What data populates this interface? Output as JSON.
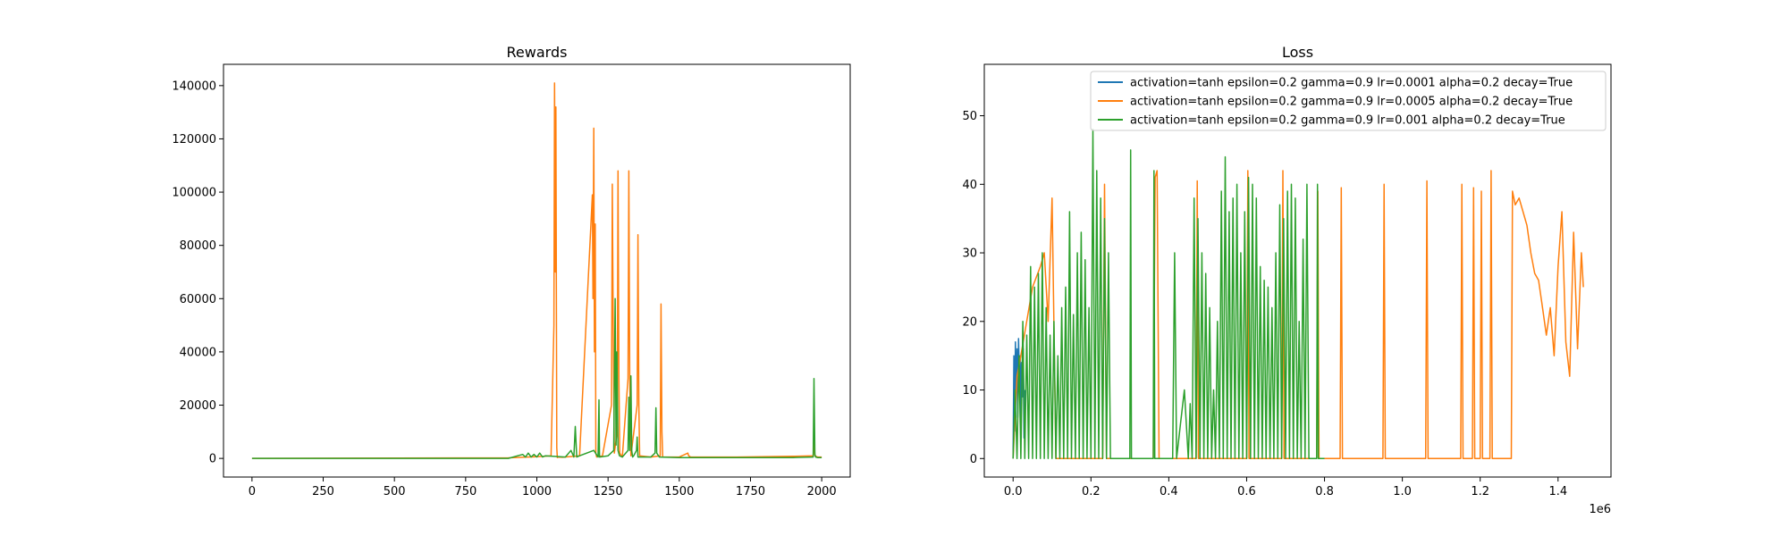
{
  "chart_data": [
    {
      "type": "line",
      "title": "Rewards",
      "xlabel": "",
      "ylabel": "",
      "xlim": [
        -100,
        2100
      ],
      "ylim": [
        -7000,
        148000
      ],
      "xticks": [
        "0",
        "250",
        "500",
        "750",
        "1000",
        "1250",
        "1500",
        "1750",
        "2000"
      ],
      "yticks": [
        "0",
        "20000",
        "40000",
        "60000",
        "80000",
        "100000",
        "120000",
        "140000"
      ],
      "grid": false,
      "series": [
        {
          "color": "#ff7f0e",
          "x": [
            0,
            900,
            1000,
            1050,
            1060,
            1062,
            1065,
            1067,
            1070,
            1072,
            1074,
            1090,
            1150,
            1195,
            1197,
            1200,
            1202,
            1205,
            1207,
            1210,
            1212,
            1230,
            1262,
            1265,
            1268,
            1272,
            1282,
            1285,
            1288,
            1291,
            1300,
            1320,
            1323,
            1326,
            1330,
            1352,
            1355,
            1358,
            1361,
            1400,
            1433,
            1436,
            1439,
            1442,
            1500,
            1530,
            1533,
            1540,
            1700,
            1900,
            1970,
            1973,
            1976,
            1985,
            2000
          ],
          "y": [
            0,
            200,
            600,
            1000,
            50000,
            141000,
            70000,
            132000,
            4000,
            300,
            500,
            400,
            1000,
            99000,
            60000,
            124000,
            40000,
            88000,
            2000,
            500,
            1000,
            800,
            20000,
            103000,
            50000,
            2000,
            10000,
            108000,
            30000,
            2000,
            500,
            30000,
            108000,
            30000,
            1000,
            20000,
            84000,
            20000,
            1000,
            500,
            1000,
            58000,
            10000,
            500,
            500,
            2000,
            1000,
            500,
            500,
            800,
            1000,
            7000,
            1000,
            500,
            500
          ]
        },
        {
          "color": "#2ca02c",
          "x": [
            0,
            900,
            950,
            960,
            970,
            980,
            990,
            1000,
            1010,
            1020,
            1030,
            1100,
            1120,
            1130,
            1135,
            1140,
            1150,
            1200,
            1215,
            1218,
            1220,
            1250,
            1270,
            1275,
            1278,
            1281,
            1285,
            1290,
            1300,
            1320,
            1323,
            1326,
            1330,
            1333,
            1336,
            1340,
            1350,
            1352,
            1355,
            1400,
            1415,
            1418,
            1421,
            1430,
            1500,
            1900,
            1970,
            1973,
            1976,
            1979,
            1985,
            2000
          ],
          "y": [
            0,
            0,
            1500,
            500,
            2000,
            500,
            1500,
            500,
            2000,
            500,
            1000,
            500,
            3000,
            500,
            12000,
            500,
            1000,
            3000,
            500,
            22000,
            500,
            1000,
            3000,
            60000,
            5000,
            40000,
            3000,
            1000,
            500,
            3000,
            23000,
            3000,
            31000,
            3000,
            500,
            1000,
            3000,
            8000,
            500,
            500,
            2000,
            19000,
            2000,
            500,
            300,
            300,
            500,
            30000,
            1500,
            500,
            300,
            300
          ]
        }
      ]
    },
    {
      "type": "line",
      "title": "Loss",
      "xlabel": "",
      "ylabel": "",
      "x_offset_label": "1e6",
      "xlim": [
        -0.074,
        1.536
      ],
      "ylim": [
        -2.7,
        57.5
      ],
      "xticks": [
        "0.0",
        "0.2",
        "0.4",
        "0.6",
        "0.8",
        "1.0",
        "1.2",
        "1.4"
      ],
      "yticks": [
        "0",
        "10",
        "20",
        "30",
        "40",
        "50"
      ],
      "grid": false,
      "legend_position": "top-right",
      "legend": [
        "activation=tanh epsilon=0.2 gamma=0.9 lr=0.0001 alpha=0.2 decay=True",
        "activation=tanh epsilon=0.2 gamma=0.9 lr=0.0005 alpha=0.2 decay=True",
        "activation=tanh epsilon=0.2 gamma=0.9 lr=0.001 alpha=0.2 decay=True"
      ],
      "series": [
        {
          "color": "#1f77b4",
          "x": [
            0.0,
            0.002,
            0.004,
            0.006,
            0.008,
            0.01,
            0.012,
            0.014,
            0.016,
            0.018,
            0.02,
            0.022,
            0.024,
            0.026,
            0.028,
            0.03
          ],
          "y": [
            0,
            15,
            4,
            17,
            10,
            16,
            6,
            17.5,
            12,
            15,
            5,
            14,
            9,
            16,
            3,
            10
          ]
        },
        {
          "color": "#ff7f0e",
          "x": [
            0.0,
            0.01,
            0.02,
            0.05,
            0.07,
            0.08,
            0.09,
            0.1,
            0.11,
            0.2,
            0.23,
            0.235,
            0.24,
            0.36,
            0.365,
            0.37,
            0.375,
            0.47,
            0.473,
            0.476,
            0.6,
            0.603,
            0.606,
            0.69,
            0.693,
            0.696,
            0.78,
            0.783,
            0.786,
            0.84,
            0.843,
            0.846,
            0.95,
            0.953,
            0.956,
            1.06,
            1.063,
            1.066,
            1.15,
            1.153,
            1.156,
            1.18,
            1.183,
            1.186,
            1.2,
            1.203,
            1.206,
            1.225,
            1.228,
            1.231,
            1.28,
            1.283,
            1.29,
            1.3,
            1.31,
            1.32,
            1.33,
            1.34,
            1.35,
            1.36,
            1.37,
            1.38,
            1.39,
            1.4,
            1.41,
            1.42,
            1.43,
            1.44,
            1.45,
            1.46,
            1.465
          ],
          "y": [
            0,
            12,
            15,
            25,
            28,
            30,
            20,
            38,
            0,
            0,
            0,
            40,
            0,
            0,
            41,
            42,
            0,
            0,
            40.5,
            0,
            0,
            42,
            0,
            0,
            42,
            0,
            0,
            39,
            0,
            0,
            39.5,
            0,
            0,
            40,
            0,
            0,
            40.5,
            0,
            0,
            40,
            0,
            0,
            39.5,
            0,
            0,
            39,
            0,
            0,
            42,
            0,
            0,
            39,
            37,
            38,
            36,
            34,
            30,
            27,
            26,
            22,
            18,
            22,
            15,
            28,
            36,
            17,
            12,
            33,
            16,
            30,
            25
          ]
        },
        {
          "color": "#2ca02c",
          "x": [
            0.0,
            0.005,
            0.01,
            0.015,
            0.02,
            0.025,
            0.03,
            0.035,
            0.04,
            0.045,
            0.05,
            0.055,
            0.06,
            0.065,
            0.07,
            0.075,
            0.08,
            0.085,
            0.09,
            0.095,
            0.1,
            0.105,
            0.11,
            0.115,
            0.12,
            0.125,
            0.13,
            0.135,
            0.14,
            0.145,
            0.15,
            0.155,
            0.16,
            0.165,
            0.17,
            0.175,
            0.18,
            0.185,
            0.19,
            0.195,
            0.2,
            0.205,
            0.21,
            0.215,
            0.22,
            0.225,
            0.23,
            0.235,
            0.24,
            0.245,
            0.25,
            0.255,
            0.3,
            0.302,
            0.304,
            0.36,
            0.362,
            0.364,
            0.4,
            0.41,
            0.415,
            0.42,
            0.43,
            0.44,
            0.45,
            0.455,
            0.46,
            0.465,
            0.47,
            0.475,
            0.48,
            0.485,
            0.49,
            0.495,
            0.5,
            0.505,
            0.51,
            0.515,
            0.52,
            0.525,
            0.53,
            0.535,
            0.54,
            0.545,
            0.55,
            0.555,
            0.56,
            0.565,
            0.57,
            0.575,
            0.58,
            0.585,
            0.59,
            0.595,
            0.6,
            0.605,
            0.61,
            0.615,
            0.62,
            0.625,
            0.63,
            0.635,
            0.64,
            0.645,
            0.65,
            0.655,
            0.66,
            0.665,
            0.67,
            0.675,
            0.68,
            0.685,
            0.69,
            0.695,
            0.7,
            0.705,
            0.71,
            0.715,
            0.72,
            0.725,
            0.73,
            0.735,
            0.74,
            0.745,
            0.75,
            0.755,
            0.76,
            0.78,
            0.782,
            0.784,
            0.8
          ],
          "y": [
            0,
            10,
            0,
            15,
            0,
            20,
            0,
            18,
            0,
            28,
            0,
            25,
            0,
            27,
            0,
            30,
            0,
            22,
            0,
            18,
            0,
            20,
            0,
            15,
            0,
            22,
            0,
            25,
            0,
            36,
            0,
            21,
            0,
            30,
            0,
            33,
            0,
            29,
            0,
            22,
            0,
            48,
            0,
            42,
            0,
            38,
            0,
            35,
            0,
            30,
            0,
            0,
            0,
            45,
            0,
            0,
            42,
            0,
            0,
            0,
            30,
            0,
            5,
            10,
            0,
            8,
            0,
            38,
            0,
            35,
            0,
            30,
            0,
            27,
            0,
            22,
            0,
            10,
            0,
            20,
            0,
            39,
            0,
            44,
            0,
            36,
            0,
            38,
            0,
            40,
            0,
            30,
            0,
            36,
            0,
            41,
            0,
            40,
            0,
            38,
            0,
            28,
            0,
            26,
            0,
            25,
            0,
            22,
            0,
            30,
            0,
            37,
            0,
            35,
            0,
            39,
            0,
            40,
            0,
            38,
            0,
            20,
            0,
            32,
            0,
            40,
            0,
            0,
            40,
            0,
            0
          ]
        }
      ]
    }
  ]
}
